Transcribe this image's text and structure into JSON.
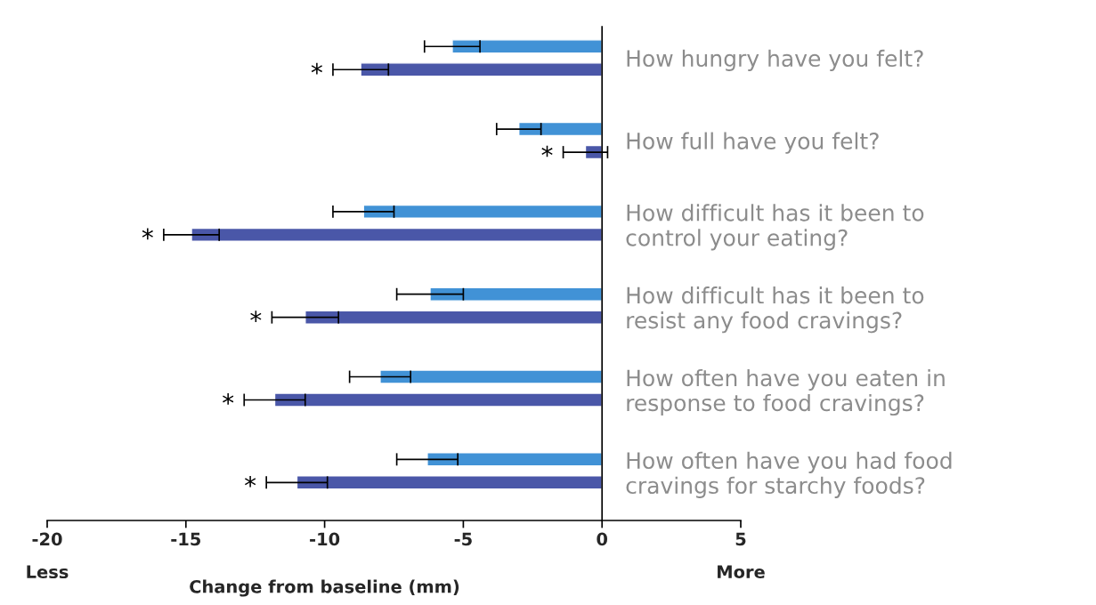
{
  "chart_data": {
    "type": "bar",
    "orientation": "horizontal",
    "xlabel": "Change from baseline (mm)",
    "categories": [
      "How hungry have you felt?",
      "How full have you felt?",
      "How difficult has it been to\ncontrol your eating?",
      "How difficult has it been to\nresist any food cravings?",
      "How often have you eaten in\nresponse to food cravings?",
      "How often have you had food\ncravings for starchy foods?"
    ],
    "series": [
      {
        "color": "#4192d6",
        "values": [
          -5.4,
          -3.0,
          -8.6,
          -6.2,
          -8.0,
          -6.3
        ],
        "errors": [
          1.0,
          0.8,
          1.1,
          1.2,
          1.1,
          1.1
        ]
      },
      {
        "color": "#4a57a8",
        "values": [
          -8.7,
          -0.6,
          -14.8,
          -10.7,
          -11.8,
          -11.0
        ],
        "errors": [
          1.0,
          0.8,
          1.0,
          1.2,
          1.1,
          1.1
        ],
        "value_labels": [
          "*",
          "*",
          "*",
          "*",
          "*",
          "*"
        ]
      }
    ],
    "xlim": [
      -20,
      5
    ],
    "xticks": [
      -20,
      -15,
      -10,
      -5,
      0,
      5
    ],
    "annotations": [
      "Less",
      "More"
    ],
    "grid": false
  }
}
